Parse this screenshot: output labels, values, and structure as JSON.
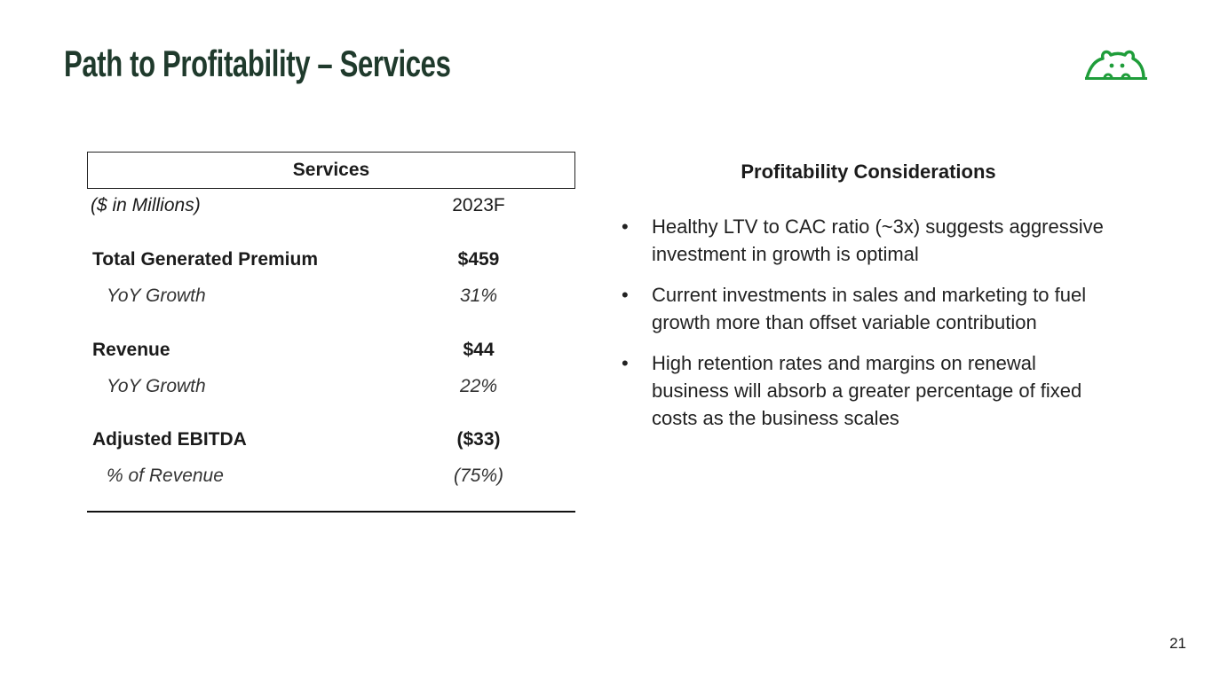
{
  "header": {
    "title": "Path to Profitability – Services"
  },
  "table": {
    "title": "Services",
    "columns": [
      "($ in Millions)",
      "2023F"
    ],
    "rows": [
      [
        "Total Generated Premium",
        "$459"
      ],
      [
        "YoY Growth",
        "31%"
      ],
      [
        "Revenue",
        "$44"
      ],
      [
        "YoY Growth",
        "22%"
      ],
      [
        "Adjusted EBITDA",
        "($33)"
      ],
      [
        "% of Revenue",
        "(75%)"
      ]
    ]
  },
  "considerations": {
    "title": "Profitability Considerations",
    "bullets": [
      "Healthy LTV to CAC ratio (~3x) suggests aggressive investment in growth is optimal",
      "Current investments in sales and marketing to fuel growth more than offset variable contribution",
      "High retention rates and margins on renewal business will absorb a greater percentage of fixed costs as the business scales"
    ]
  },
  "page_number": 21
}
